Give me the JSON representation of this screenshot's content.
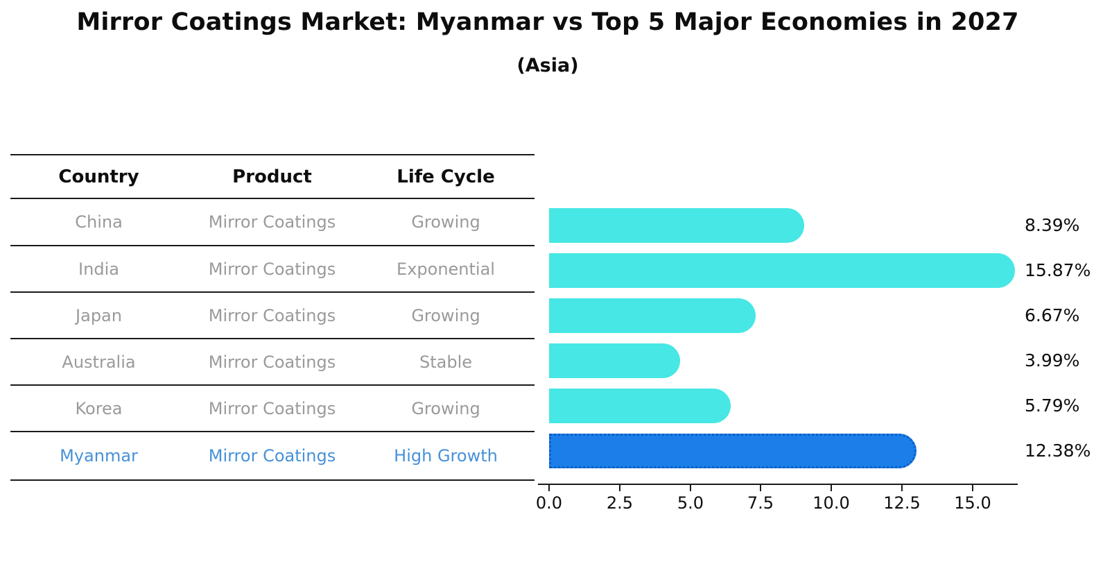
{
  "title": "Mirror Coatings Market: Myanmar vs Top 5 Major Economies in 2027",
  "subtitle": "(Asia)",
  "table": {
    "headers": [
      "Country",
      "Product",
      "Life Cycle"
    ],
    "rows": [
      {
        "country": "China",
        "product": "Mirror Coatings",
        "life_cycle": "Growing",
        "highlight": false
      },
      {
        "country": "India",
        "product": "Mirror Coatings",
        "life_cycle": "Exponential",
        "highlight": false
      },
      {
        "country": "Japan",
        "product": "Mirror Coatings",
        "life_cycle": "Growing",
        "highlight": false
      },
      {
        "country": "Australia",
        "product": "Mirror Coatings",
        "life_cycle": "Stable",
        "highlight": false
      },
      {
        "country": "Korea",
        "product": "Mirror Coatings",
        "life_cycle": "Growing",
        "highlight": false
      },
      {
        "country": "Myanmar",
        "product": "Mirror Coatings",
        "life_cycle": "High Growth",
        "highlight": true
      }
    ]
  },
  "chart_data": {
    "type": "bar",
    "orientation": "horizontal",
    "title": "Mirror Coatings Market: Myanmar vs Top 5 Major Economies in 2027",
    "subtitle": "(Asia)",
    "categories": [
      "China",
      "India",
      "Japan",
      "Australia",
      "Korea",
      "Myanmar"
    ],
    "values": [
      8.39,
      15.87,
      6.67,
      3.99,
      5.79,
      12.38
    ],
    "value_labels": [
      "8.39%",
      "15.87%",
      "6.67%",
      "3.99%",
      "5.79%",
      "12.38%"
    ],
    "unit": "%",
    "x_tick_labels": [
      "0.0",
      "2.5",
      "5.0",
      "7.5",
      "10.0",
      "12.5",
      "15.0"
    ],
    "xlim": [
      0,
      16.6
    ],
    "highlight_index": 5,
    "grid": false,
    "legend": false,
    "colors": {
      "bar": "#46E7E4",
      "highlight_bar": "#1B7EE9",
      "highlight_edge": "#0E5FC4",
      "highlight_text": "#4791D9",
      "text": "#111111",
      "muted_text": "#9A9A9A"
    }
  }
}
